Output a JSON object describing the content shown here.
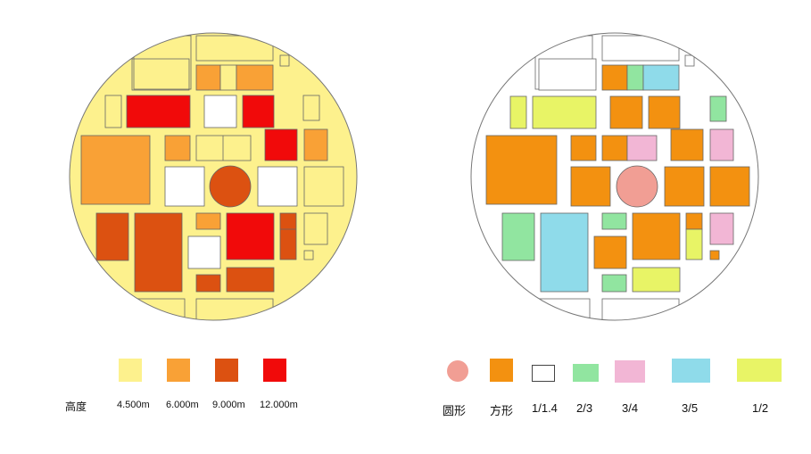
{
  "height_legend": {
    "title": "高度",
    "items": [
      {
        "label": "4.500m",
        "color": "#fdf18d"
      },
      {
        "label": "6.000m",
        "color": "#f9a136"
      },
      {
        "label": "9.000m",
        "color": "#dc5111"
      },
      {
        "label": "12.000m",
        "color": "#f10a0a"
      }
    ]
  },
  "shape_legend": {
    "items": [
      {
        "label": "圆形",
        "color": "#f19e94"
      },
      {
        "label": "方形",
        "color": "#f39110"
      },
      {
        "label": "1/1.4",
        "color": "#ffffff"
      },
      {
        "label": "2/3",
        "color": "#91e5a0"
      },
      {
        "label": "3/4",
        "color": "#f2b6d5"
      },
      {
        "label": "3/5",
        "color": "#8fdbea"
      },
      {
        "label": "1/2",
        "color": "#e8f466"
      }
    ]
  },
  "colors": {
    "plan_background": "#fdf18d",
    "outline": "#555555"
  }
}
